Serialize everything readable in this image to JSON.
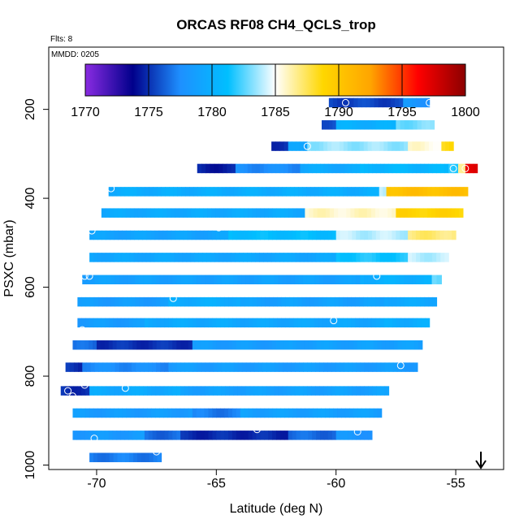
{
  "chart_data": {
    "type": "heatmap",
    "title": "ORCAS RF08 CH4_QCLS_trop",
    "note_flights": "Flts: 8",
    "note_date": "MMDD: 0205",
    "xlabel": "Latitude (deg N)",
    "ylabel": "PSXC (mbar)",
    "xlim": [
      -72,
      -53
    ],
    "ylim": [
      1010,
      60
    ],
    "x_ticks": [
      -70,
      -65,
      -60,
      -55
    ],
    "x_tick_labels": [
      "-70",
      "-65",
      "-60",
      "-55"
    ],
    "y_ticks": [
      200,
      400,
      600,
      800,
      1000
    ],
    "y_tick_labels": [
      "200",
      "400",
      "600",
      "800",
      "1000"
    ],
    "colorbar": {
      "min": 1770,
      "max": 1800,
      "ticks": [
        1770,
        1775,
        1780,
        1785,
        1790,
        1795,
        1800
      ],
      "tick_labels": [
        "1770",
        "1775",
        "1780",
        "1785",
        "1790",
        "1795",
        "1800"
      ],
      "stops": [
        "#8a2be2",
        "#00008b",
        "#1e90ff",
        "#00bfff",
        "#ffffff",
        "#ffd700",
        "#ffa500",
        "#ff0000",
        "#8b0000"
      ]
    },
    "arrow_direction": "down",
    "rows": [
      {
        "p": 185,
        "x0": -60.3,
        "x1": -56.1,
        "segments": [
          [
            -60.3,
            -57.2,
            1775.5
          ],
          [
            -57.2,
            -56.1,
            1778.0
          ]
        ]
      },
      {
        "p": 235,
        "x0": -60.6,
        "x1": -55.9,
        "segments": [
          [
            -60.6,
            -60.0,
            1776.0
          ],
          [
            -60.0,
            -57.5,
            1780.0
          ],
          [
            -57.5,
            -55.9,
            1783.0
          ]
        ]
      },
      {
        "p": 283,
        "x0": -62.7,
        "x1": -55.1,
        "segments": [
          [
            -62.7,
            -62.0,
            1775.0
          ],
          [
            -62.0,
            -61.2,
            1779.0
          ],
          [
            -61.2,
            -57.0,
            1783.5
          ],
          [
            -57.0,
            -55.6,
            1785.5
          ],
          [
            -55.6,
            -55.1,
            1788.5
          ]
        ]
      },
      {
        "p": 333,
        "x0": -65.8,
        "x1": -54.1,
        "segments": [
          [
            -65.8,
            -64.2,
            1774.5
          ],
          [
            -64.2,
            -61.5,
            1777.5
          ],
          [
            -61.5,
            -59.0,
            1779.5
          ],
          [
            -59.0,
            -55.3,
            1780.5
          ],
          [
            -55.3,
            -54.9,
            1782.0
          ],
          [
            -54.9,
            -54.6,
            1787.0
          ],
          [
            -54.6,
            -54.1,
            1797.0
          ]
        ]
      },
      {
        "p": 385,
        "x0": -69.5,
        "x1": -54.5,
        "segments": [
          [
            -69.5,
            -58.2,
            1779.8
          ],
          [
            -58.2,
            -57.9,
            1784.0
          ],
          [
            -57.9,
            -54.5,
            1790.5
          ]
        ]
      },
      {
        "p": 433,
        "x0": -69.8,
        "x1": -54.7,
        "segments": [
          [
            -69.8,
            -61.3,
            1779.5
          ],
          [
            -61.3,
            -57.5,
            1785.8
          ],
          [
            -57.5,
            -54.7,
            1789.0
          ]
        ]
      },
      {
        "p": 483,
        "x0": -70.3,
        "x1": -55.0,
        "segments": [
          [
            -70.3,
            -64.5,
            1779.0
          ],
          [
            -64.5,
            -60.0,
            1781.0
          ],
          [
            -60.0,
            -57.0,
            1784.0
          ],
          [
            -57.0,
            -55.0,
            1787.0
          ]
        ]
      },
      {
        "p": 533,
        "x0": -70.3,
        "x1": -55.3,
        "segments": [
          [
            -70.3,
            -60.0,
            1779.3
          ],
          [
            -60.0,
            -57.0,
            1781.5
          ],
          [
            -57.0,
            -55.3,
            1784.0
          ]
        ]
      },
      {
        "p": 583,
        "x0": -70.6,
        "x1": -55.6,
        "segments": [
          [
            -70.6,
            -59.0,
            1778.8
          ],
          [
            -59.0,
            -56.0,
            1780.0
          ],
          [
            -56.0,
            -55.6,
            1782.5
          ]
        ]
      },
      {
        "p": 633,
        "x0": -70.8,
        "x1": -55.8,
        "segments": [
          [
            -70.8,
            -67.0,
            1778.5
          ],
          [
            -67.0,
            -64.0,
            1779.8
          ],
          [
            -64.0,
            -58.0,
            1778.8
          ],
          [
            -58.0,
            -55.8,
            1779.5
          ]
        ]
      },
      {
        "p": 680,
        "x0": -70.8,
        "x1": -56.1,
        "segments": [
          [
            -70.8,
            -68.0,
            1778.5
          ],
          [
            -68.0,
            -64.0,
            1779.5
          ],
          [
            -64.0,
            -58.0,
            1779.3
          ],
          [
            -58.0,
            -56.1,
            1779.8
          ]
        ]
      },
      {
        "p": 730,
        "x0": -71.0,
        "x1": -56.4,
        "segments": [
          [
            -71.0,
            -70.0,
            1776.5
          ],
          [
            -70.0,
            -66.0,
            1775.0
          ],
          [
            -66.0,
            -62.0,
            1778.5
          ],
          [
            -62.0,
            -56.4,
            1778.8
          ]
        ]
      },
      {
        "p": 780,
        "x0": -71.3,
        "x1": -56.6,
        "segments": [
          [
            -71.3,
            -70.6,
            1775.0
          ],
          [
            -70.6,
            -67.0,
            1777.5
          ],
          [
            -67.0,
            -56.6,
            1778.5
          ]
        ]
      },
      {
        "p": 833,
        "x0": -71.5,
        "x1": -57.8,
        "segments": [
          [
            -71.5,
            -70.3,
            1775.0
          ],
          [
            -70.3,
            -66.5,
            1779.5
          ],
          [
            -66.5,
            -57.8,
            1778.8
          ]
        ]
      },
      {
        "p": 883,
        "x0": -71.0,
        "x1": -58.1,
        "segments": [
          [
            -71.0,
            -66.0,
            1778.5
          ],
          [
            -66.0,
            -64.0,
            1777.0
          ],
          [
            -64.0,
            -58.1,
            1778.8
          ]
        ]
      },
      {
        "p": 933,
        "x0": -71.0,
        "x1": -58.5,
        "segments": [
          [
            -71.0,
            -68.0,
            1778.3
          ],
          [
            -68.0,
            -66.5,
            1776.5
          ],
          [
            -66.5,
            -62.0,
            1774.8
          ],
          [
            -62.0,
            -60.0,
            1776.5
          ],
          [
            -60.0,
            -58.5,
            1778.0
          ]
        ]
      },
      {
        "p": 983,
        "x0": -70.3,
        "x1": -67.3,
        "segments": [
          [
            -70.3,
            -67.3,
            1777.0
          ]
        ]
      }
    ],
    "points": [
      [
        -59.6,
        185
      ],
      [
        -56.1,
        185
      ],
      [
        -61.2,
        283
      ],
      [
        -55.1,
        333
      ],
      [
        -54.6,
        333
      ],
      [
        -69.4,
        378
      ],
      [
        -64.9,
        466
      ],
      [
        -70.2,
        473
      ],
      [
        -70.5,
        575
      ],
      [
        -70.3,
        575
      ],
      [
        -58.3,
        575
      ],
      [
        -66.8,
        625
      ],
      [
        -60.1,
        675
      ],
      [
        -70.6,
        696
      ],
      [
        -69.9,
        760
      ],
      [
        -57.3,
        776
      ],
      [
        -70.5,
        820
      ],
      [
        -68.8,
        827
      ],
      [
        -71.2,
        833
      ],
      [
        -71.0,
        845
      ],
      [
        -67.8,
        855
      ],
      [
        -63.3,
        920
      ],
      [
        -59.1,
        925
      ],
      [
        -70.1,
        940
      ],
      [
        -71.2,
        952
      ],
      [
        -70.0,
        964
      ],
      [
        -68.1,
        961
      ],
      [
        -67.5,
        970
      ]
    ]
  }
}
